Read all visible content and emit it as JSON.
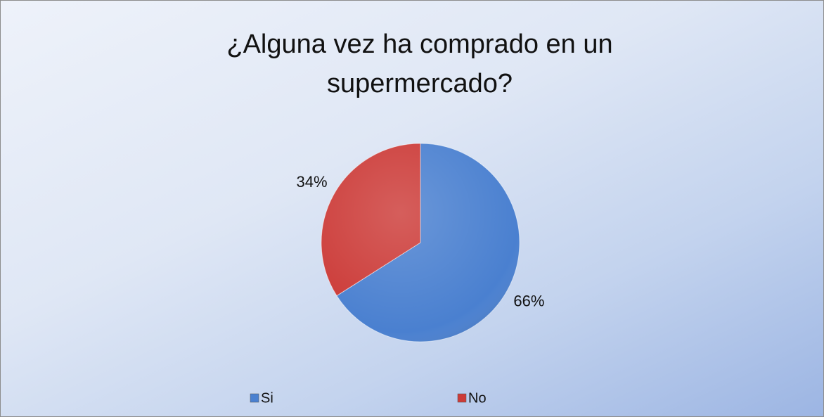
{
  "chart_data": {
    "type": "pie",
    "title": "¿Alguna vez ha comprado en un supermercado?",
    "categories": [
      "Si",
      "No"
    ],
    "values": [
      66,
      34
    ],
    "value_labels": [
      "66%",
      "34%"
    ],
    "colors": [
      "#4a80d0",
      "#cc3b38"
    ],
    "legend": "bottom"
  }
}
